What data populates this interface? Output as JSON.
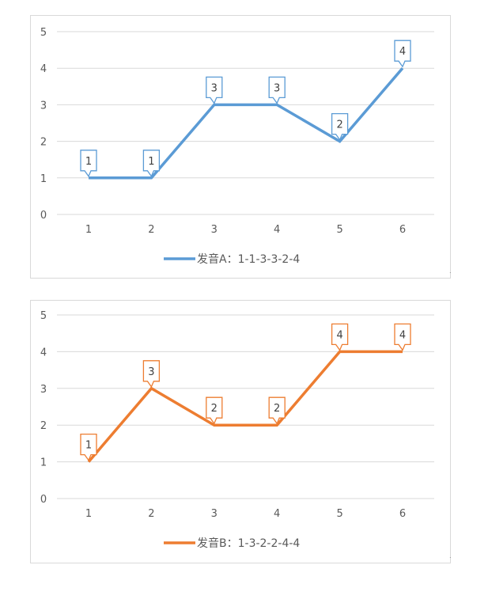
{
  "chart_data": [
    {
      "type": "line",
      "x": [
        "1",
        "2",
        "3",
        "4",
        "5",
        "6"
      ],
      "series": [
        {
          "name": "发音A：1-1-3-3-2-4",
          "values": [
            1,
            1,
            3,
            3,
            2,
            4
          ],
          "color": "#5b9bd5"
        }
      ],
      "data_labels": [
        "1",
        "1",
        "3",
        "3",
        "2",
        "4"
      ],
      "yticks": [
        "0",
        "1",
        "2",
        "3",
        "4",
        "5"
      ],
      "ylim": [
        0,
        5
      ],
      "grid": true,
      "legend_position": "bottom"
    },
    {
      "type": "line",
      "x": [
        "1",
        "2",
        "3",
        "4",
        "5",
        "6"
      ],
      "series": [
        {
          "name": "发音B：1-3-2-2-4-4",
          "values": [
            1,
            3,
            2,
            2,
            4,
            4
          ],
          "color": "#ed7d31"
        }
      ],
      "data_labels": [
        "1",
        "3",
        "2",
        "2",
        "4",
        "4"
      ],
      "yticks": [
        "0",
        "1",
        "2",
        "3",
        "4",
        "5"
      ],
      "ylim": [
        0,
        5
      ],
      "grid": true,
      "legend_position": "bottom"
    }
  ]
}
